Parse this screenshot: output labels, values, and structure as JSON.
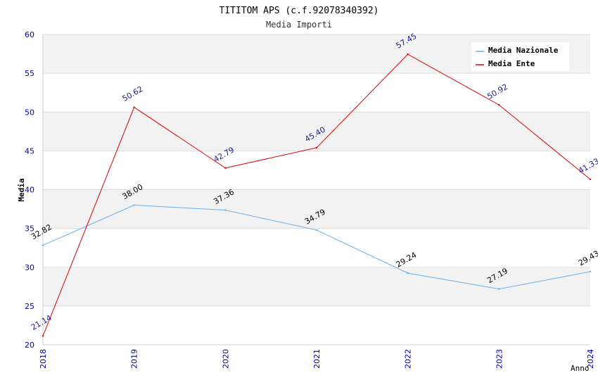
{
  "chart_data": {
    "type": "line",
    "title": "TITITOM APS (c.f.92078340392)",
    "subtitle": "Media Importi",
    "xlabel": "Anno",
    "ylabel": "Media",
    "x": [
      "2018",
      "2019",
      "2020",
      "2021",
      "2022",
      "2023",
      "2024"
    ],
    "ylim": [
      20,
      60
    ],
    "yticks": [
      "20",
      "25",
      "30",
      "35",
      "40",
      "45",
      "50",
      "55",
      "60"
    ],
    "grid": true,
    "legend_position": "top-right",
    "series": [
      {
        "name": "Media Nazionale",
        "color": "#6aaee8",
        "label_color": "#000000",
        "values": [
          32.82,
          38.0,
          37.36,
          34.79,
          29.24,
          27.19,
          29.43
        ],
        "labels": [
          "32.82",
          "38.00",
          "37.36",
          "34.79",
          "29.24",
          "27.19",
          "29.43"
        ]
      },
      {
        "name": "Media Ente",
        "color": "#dd0000",
        "label_color": "#1a1a8c",
        "values": [
          21.14,
          50.62,
          42.79,
          45.4,
          57.45,
          50.92,
          41.33
        ],
        "labels": [
          "21.14",
          "50.62",
          "42.79",
          "45.40",
          "57.45",
          "50.92",
          "41.33"
        ]
      }
    ],
    "colors": {
      "tick_label": "#0000aa",
      "band": "#f2f2f2",
      "grid": "#dddddd"
    }
  }
}
